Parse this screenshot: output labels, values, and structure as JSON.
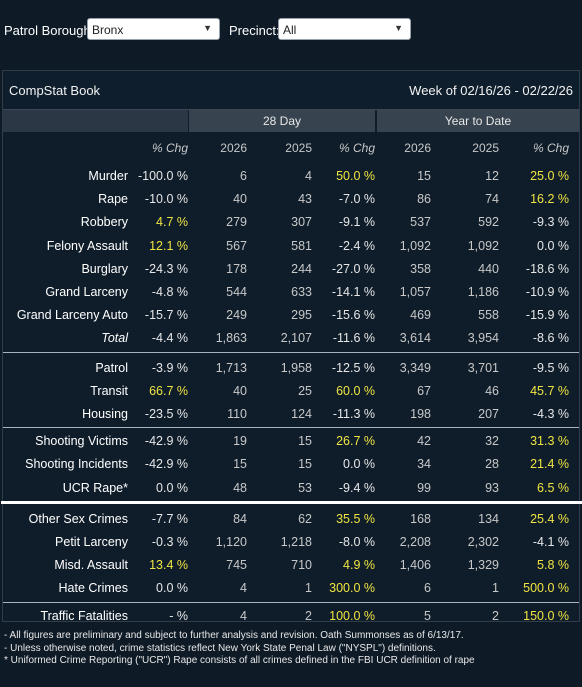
{
  "filters": {
    "borough_label": "Patrol Borough:",
    "borough_value": "Bronx",
    "precinct_label": "Precinct:",
    "precinct_value": "All"
  },
  "panel": {
    "title": "CompStat Book",
    "week": "Week of 02/16/26 - 02/22/26"
  },
  "groups": {
    "d28": "28 Day",
    "ytd": "Year to Date"
  },
  "headers": [
    "% Chg",
    "2026",
    "2025",
    "% Chg",
    "2026",
    "2025",
    "% Chg"
  ],
  "rows": [
    {
      "name": "Murder",
      "wk": "-100.0 %",
      "d26": "6",
      "d25": "4",
      "dch": "50.0 %",
      "y26": "15",
      "y25": "12",
      "ych": "25.0 %"
    },
    {
      "name": "Rape",
      "wk": "-10.0 %",
      "d26": "40",
      "d25": "43",
      "dch": "-7.0 %",
      "y26": "86",
      "y25": "74",
      "ych": "16.2 %"
    },
    {
      "name": "Robbery",
      "wk": "4.7 %",
      "d26": "279",
      "d25": "307",
      "dch": "-9.1 %",
      "y26": "537",
      "y25": "592",
      "ych": "-9.3 %"
    },
    {
      "name": "Felony Assault",
      "wk": "12.1 %",
      "d26": "567",
      "d25": "581",
      "dch": "-2.4 %",
      "y26": "1,092",
      "y25": "1,092",
      "ych": "0.0 %"
    },
    {
      "name": "Burglary",
      "wk": "-24.3 %",
      "d26": "178",
      "d25": "244",
      "dch": "-27.0 %",
      "y26": "358",
      "y25": "440",
      "ych": "-18.6 %"
    },
    {
      "name": "Grand Larceny",
      "wk": "-4.8 %",
      "d26": "544",
      "d25": "633",
      "dch": "-14.1 %",
      "y26": "1,057",
      "y25": "1,186",
      "ych": "-10.9 %"
    },
    {
      "name": "Grand Larceny Auto",
      "wk": "-15.7 %",
      "d26": "249",
      "d25": "295",
      "dch": "-15.6 %",
      "y26": "469",
      "y25": "558",
      "ych": "-15.9 %"
    },
    {
      "name": "Total",
      "wk": "-4.4 %",
      "d26": "1,863",
      "d25": "2,107",
      "dch": "-11.6 %",
      "y26": "3,614",
      "y25": "3,954",
      "ych": "-8.6 %"
    },
    {
      "name": "Patrol",
      "wk": "-3.9 %",
      "d26": "1,713",
      "d25": "1,958",
      "dch": "-12.5 %",
      "y26": "3,349",
      "y25": "3,701",
      "ych": "-9.5 %"
    },
    {
      "name": "Transit",
      "wk": "66.7 %",
      "d26": "40",
      "d25": "25",
      "dch": "60.0 %",
      "y26": "67",
      "y25": "46",
      "ych": "45.7 %"
    },
    {
      "name": "Housing",
      "wk": "-23.5 %",
      "d26": "110",
      "d25": "124",
      "dch": "-11.3 %",
      "y26": "198",
      "y25": "207",
      "ych": "-4.3 %"
    },
    {
      "name": "Shooting Victims",
      "wk": "-42.9 %",
      "d26": "19",
      "d25": "15",
      "dch": "26.7 %",
      "y26": "42",
      "y25": "32",
      "ych": "31.3 %"
    },
    {
      "name": "Shooting Incidents",
      "wk": "-42.9 %",
      "d26": "15",
      "d25": "15",
      "dch": "0.0 %",
      "y26": "34",
      "y25": "28",
      "ych": "21.4 %"
    },
    {
      "name": "UCR Rape*",
      "wk": "0.0 %",
      "d26": "48",
      "d25": "53",
      "dch": "-9.4 %",
      "y26": "99",
      "y25": "93",
      "ych": "6.5 %"
    },
    {
      "name": "Other Sex Crimes",
      "wk": "-7.7 %",
      "d26": "84",
      "d25": "62",
      "dch": "35.5 %",
      "y26": "168",
      "y25": "134",
      "ych": "25.4 %"
    },
    {
      "name": "Petit Larceny",
      "wk": "-0.3 %",
      "d26": "1,120",
      "d25": "1,218",
      "dch": "-8.0 %",
      "y26": "2,208",
      "y25": "2,302",
      "ych": "-4.1 %"
    },
    {
      "name": "Misd. Assault",
      "wk": "13.4 %",
      "d26": "745",
      "d25": "710",
      "dch": "4.9 %",
      "y26": "1,406",
      "y25": "1,329",
      "ych": "5.8 %"
    },
    {
      "name": "Hate Crimes",
      "wk": "0.0 %",
      "d26": "4",
      "d25": "1",
      "dch": "300.0 %",
      "y26": "6",
      "y25": "1",
      "ych": "500.0 %"
    },
    {
      "name": "Traffic Fatalities",
      "wk": "- %",
      "d26": "4",
      "d25": "2",
      "dch": "100.0 %",
      "y26": "5",
      "y25": "2",
      "ych": "150.0 %"
    }
  ],
  "highlight_color": "#f0e442",
  "notes": [
    "- All figures are preliminary and subject to further analysis and revision. Oath Summonses as of 6/13/17.",
    "- Unless otherwise noted, crime statistics reflect New York State Penal Law (\"NYSPL\") definitions.",
    "* Uniformed Crime Reporting (\"UCR\") Rape consists of all crimes defined in the FBI UCR definition of rape"
  ]
}
